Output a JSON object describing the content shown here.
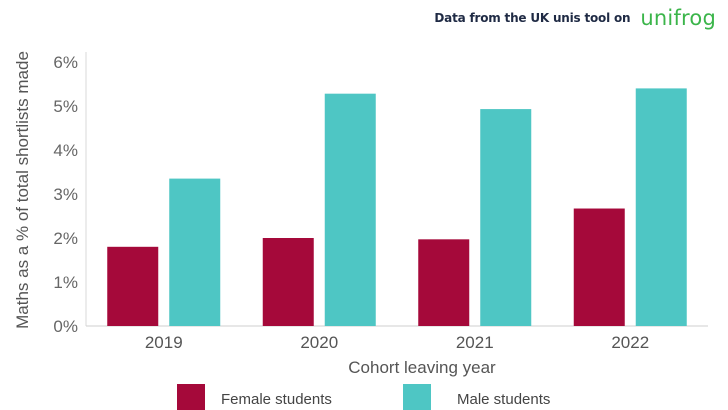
{
  "header": {
    "source_text": "Data from the UK unis tool on",
    "brand": "unifrog",
    "brand_color": "#3bb54a"
  },
  "chart_data": {
    "type": "bar",
    "categories": [
      "2019",
      "2020",
      "2021",
      "2022"
    ],
    "series": [
      {
        "name": "Female students",
        "color": "#a5093a",
        "values": [
          1.8,
          2.0,
          1.97,
          2.67
        ]
      },
      {
        "name": "Male students",
        "color": "#4ec6c4",
        "values": [
          3.35,
          5.28,
          4.93,
          5.4
        ]
      }
    ],
    "yticks": [
      "0%",
      "1%",
      "2%",
      "3%",
      "4%",
      "5%",
      "6%"
    ],
    "ylim": [
      0,
      6
    ],
    "xlabel": "Cohort leaving year",
    "ylabel": "Maths as a % of total shortlists made",
    "grid": false,
    "legend_position": "bottom"
  }
}
